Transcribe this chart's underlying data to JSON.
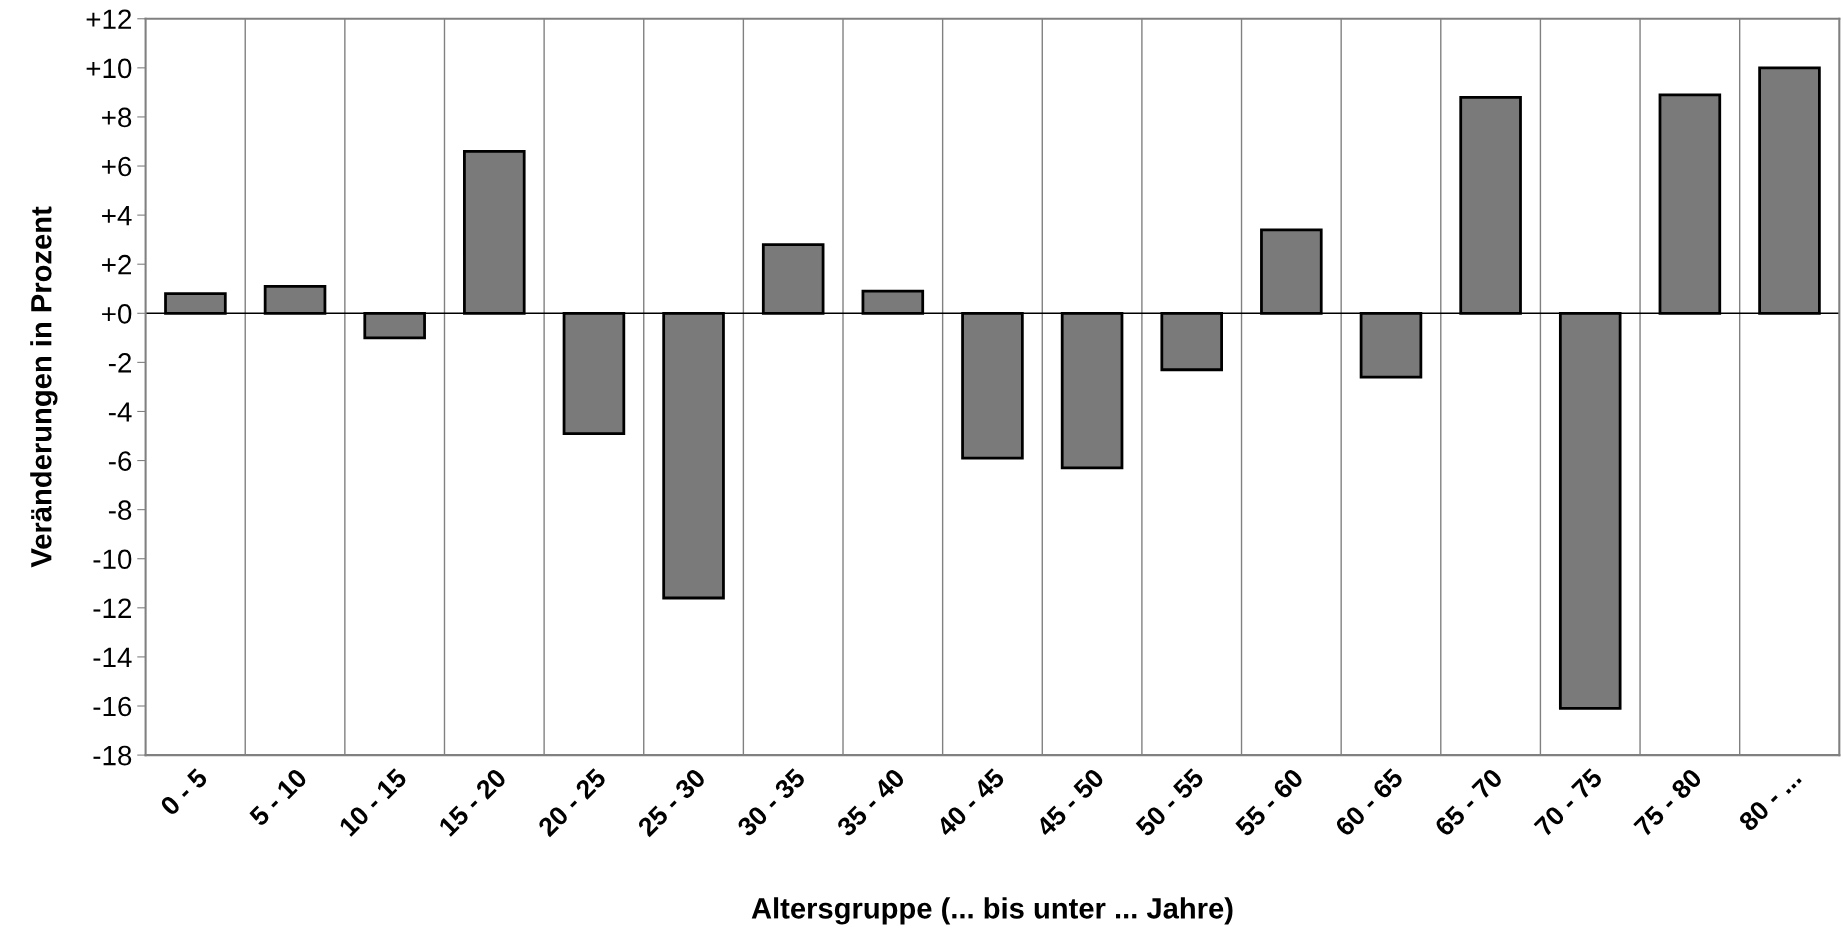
{
  "chart_data": {
    "type": "bar",
    "xlabel": "Altersgruppe (... bis unter ... Jahre)",
    "ylabel": "Veränderungen in Prozent",
    "categories": [
      "0 - 5",
      "5 - 10",
      "10 - 15",
      "15 - 20",
      "20 - 25",
      "25 - 30",
      "30 - 35",
      "35 - 40",
      "40 - 45",
      "45 - 50",
      "50 - 55",
      "55 - 60",
      "60 - 65",
      "65 - 70",
      "70 - 75",
      "75 - 80",
      "80 - ..."
    ],
    "values": [
      0.8,
      1.1,
      -1.0,
      6.6,
      -4.9,
      -11.6,
      2.8,
      0.9,
      -5.9,
      -6.3,
      -2.3,
      3.4,
      -2.6,
      8.8,
      -16.1,
      8.9,
      10.0
    ],
    "color": "#7a7a7a",
    "ylim": [
      -18,
      12
    ],
    "yticks": [
      {
        "value": 12,
        "label": "+12"
      },
      {
        "value": 10,
        "label": "+10"
      },
      {
        "value": 8,
        "label": "+8"
      },
      {
        "value": 6,
        "label": "+6"
      },
      {
        "value": 4,
        "label": "+4"
      },
      {
        "value": 2,
        "label": "+2"
      },
      {
        "value": 0,
        "label": "+0"
      },
      -2,
      -4,
      -6,
      -8,
      -10,
      -12,
      -14,
      -16,
      -18
    ],
    "grid": "x"
  }
}
